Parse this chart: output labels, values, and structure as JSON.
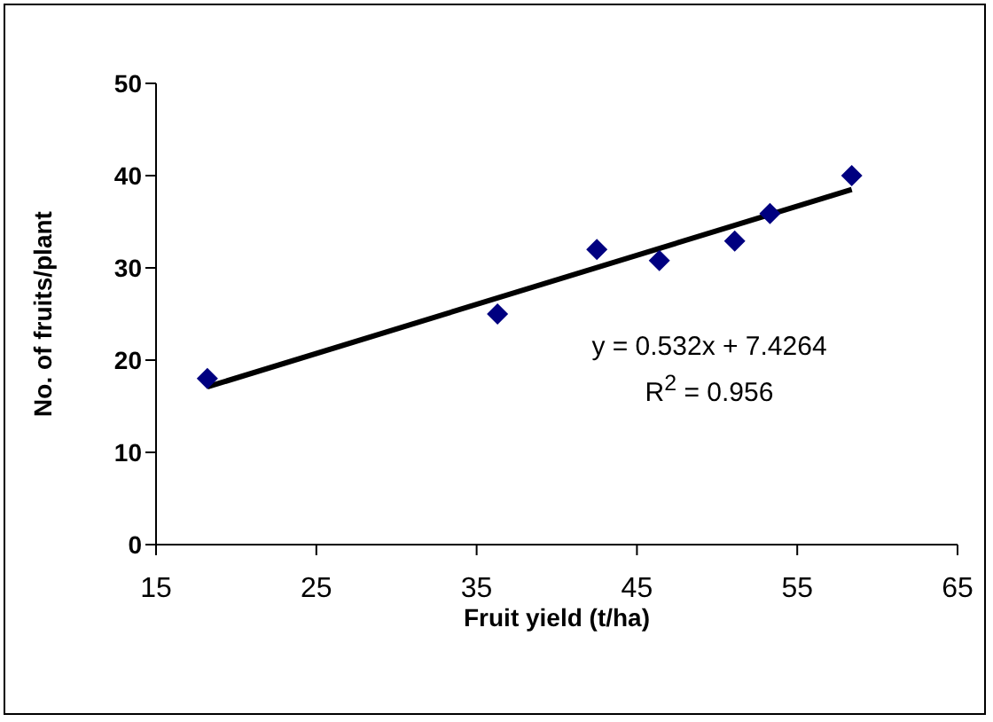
{
  "chart_data": {
    "type": "scatter",
    "xlabel": "Fruit yield (t/ha)",
    "ylabel": "No. of fruits/plant",
    "xlim": [
      15,
      65
    ],
    "xticks": [
      15,
      25,
      35,
      45,
      55,
      65
    ],
    "ylim": [
      0,
      50
    ],
    "yticks": [
      0,
      10,
      20,
      30,
      40,
      50
    ],
    "grid": false,
    "legend": false,
    "series": [
      {
        "marker": "diamond",
        "color": "#000080",
        "x": [
          18.2,
          36.3,
          42.5,
          46.4,
          51.1,
          53.3,
          58.4
        ],
        "values": [
          18,
          25,
          32,
          30.8,
          32.9,
          35.9,
          40
        ]
      },
      {
        "type": "line",
        "color": "#000000",
        "x": [
          18.2,
          58.4
        ],
        "values": [
          17.1,
          38.5
        ]
      }
    ],
    "annotations": [
      "y = 0.532x + 7.4264",
      "R$^{2}$ = 0.956"
    ]
  }
}
